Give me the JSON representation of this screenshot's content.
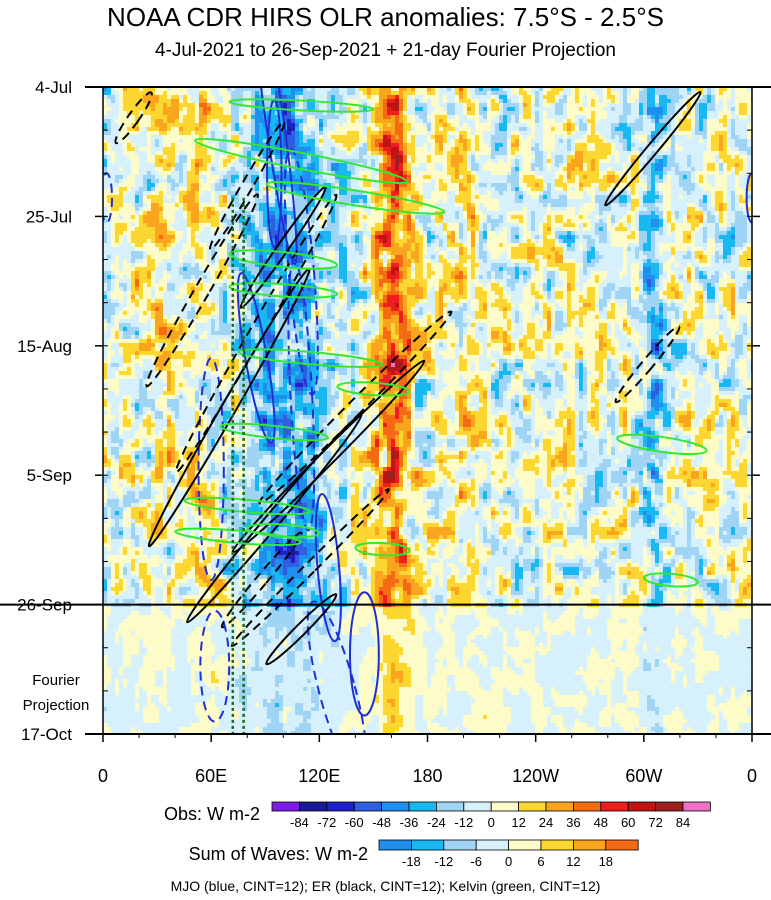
{
  "title": "NOAA CDR HIRS OLR anomalies: 7.5°S - 2.5°S",
  "subtitle": "4-Jul-2021 to 26-Sep-2021 + 21-day Fourier Projection",
  "footer": "MJO (blue, CINT=12); ER (black, CINT=12); Kelvin (green, CINT=12)",
  "colors": {
    "mjo": "#1f2fd6",
    "er": "#000000",
    "kelvin": "#33e833",
    "dotted": "#1a6b1a"
  },
  "chart_data": {
    "type": "heatmap",
    "title": "NOAA CDR HIRS OLR anomalies: 7.5°S - 2.5°S",
    "subtitle": "4-Jul-2021 to 26-Sep-2021 + 21-day Fourier Projection",
    "x_ticks": [
      "0",
      "60E",
      "120E",
      "180",
      "120W",
      "60W",
      "0"
    ],
    "x_tick_degrees": [
      0,
      60,
      120,
      180,
      240,
      300,
      360
    ],
    "xlim": [
      0,
      360
    ],
    "y_ticks": [
      "4-Jul",
      "25-Jul",
      "15-Aug",
      "5-Sep",
      "26-Sep",
      "17-Oct"
    ],
    "y_tick_day": [
      0,
      21,
      42,
      63,
      84,
      105
    ],
    "ylim_day": [
      0,
      105
    ],
    "observation_end_day": 84,
    "projection_label_lines": [
      "Fourier",
      "Projection"
    ],
    "colorbars": [
      {
        "label": "Obs: W m-2",
        "ticks": [
          "-84",
          "-72",
          "-60",
          "-48",
          "-36",
          "-24",
          "-12",
          "0",
          "12",
          "24",
          "36",
          "48",
          "60",
          "72",
          "84"
        ],
        "colors": [
          "#7a1ee6",
          "#1a1a96",
          "#2020c8",
          "#2f5fe0",
          "#1e8fee",
          "#1ab8f0",
          "#9fd4f5",
          "#d6f1fb",
          "#fdfbc8",
          "#fcd732",
          "#f9a51e",
          "#f56b14",
          "#ee1e1e",
          "#c01414",
          "#9c2020",
          "#f070c8"
        ]
      },
      {
        "label": "Sum of Waves: W m-2",
        "ticks": [
          "-18",
          "-12",
          "-6",
          "0",
          "6",
          "12",
          "18"
        ],
        "colors": [
          "#1e8fee",
          "#1ab8f0",
          "#9fd4f5",
          "#d6f1fb",
          "#fdfbc8",
          "#fcd732",
          "#f9a51e",
          "#f56b14"
        ]
      }
    ],
    "series": [
      {
        "name": "MJO",
        "cint": 12
      },
      {
        "name": "ER",
        "cint": 12
      },
      {
        "name": "Kelvin",
        "cint": 12
      }
    ],
    "reference_lines_lon": [
      72,
      78
    ]
  }
}
